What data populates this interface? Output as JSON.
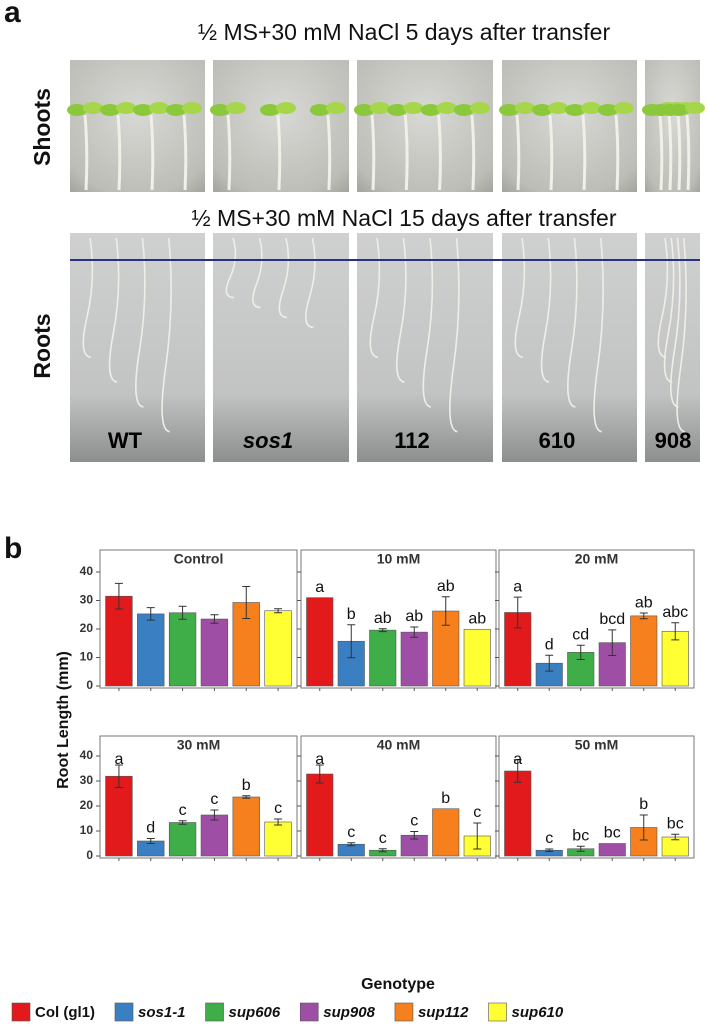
{
  "panel_a": {
    "label": "a",
    "shoots_title": "½ MS+30 mM NaCl 5 days after transfer",
    "roots_title": "½ MS+30 mM NaCl 15 days after transfer",
    "row_labels": [
      "Shoots",
      "Roots"
    ],
    "genotypes": [
      "WT",
      "sos1",
      "112",
      "610",
      "908"
    ]
  },
  "panel_b_label": "b",
  "y_label": "Root Length (mm)",
  "x_label": "Genotype",
  "legend": [
    {
      "name": "Col (gl1)",
      "color": "#e31a1c"
    },
    {
      "name": "sos1-1",
      "color": "#3a7fc1"
    },
    {
      "name": "sup606",
      "color": "#3fae49"
    },
    {
      "name": "sup908",
      "color": "#9e4fa5"
    },
    {
      "name": "sup112",
      "color": "#f7801e"
    },
    {
      "name": "sup610",
      "color": "#ffff33"
    }
  ],
  "chart_data": [
    {
      "type": "bar",
      "title": "Control",
      "values": [
        31.5,
        25.3,
        25.7,
        23.5,
        29.3,
        26.4
      ],
      "errors": [
        4.5,
        2.2,
        2.3,
        1.5,
        5.6,
        0.7
      ],
      "ylim": [
        0,
        40
      ],
      "yticks": [
        0,
        10,
        20,
        30,
        40
      ]
    },
    {
      "type": "bar",
      "title": "10 mM",
      "values": [
        31,
        15.7,
        19.6,
        18.9,
        26.3,
        19.9
      ],
      "errors": [
        null,
        5.8,
        0.5,
        1.8,
        5,
        null
      ],
      "letters": [
        "a",
        "b",
        "ab",
        "ab",
        "ab",
        "ab"
      ],
      "ylim": [
        0,
        40
      ],
      "yticks": [
        0,
        10,
        20,
        30,
        40
      ]
    },
    {
      "type": "bar",
      "title": "20 mM",
      "values": [
        25.8,
        8,
        11.8,
        15.2,
        24.6,
        19.2
      ],
      "errors": [
        5.4,
        2.8,
        2.5,
        4.5,
        1,
        3
      ],
      "letters": [
        "a",
        "d",
        "cd",
        "bcd",
        "ab",
        "abc"
      ],
      "ylim": [
        0,
        40
      ],
      "yticks": [
        0,
        10,
        20,
        30,
        40
      ]
    },
    {
      "type": "bar",
      "title": "30 mM",
      "values": [
        31.9,
        6,
        13.4,
        16.4,
        23.6,
        13.6
      ],
      "errors": [
        4.5,
        1,
        0.7,
        2,
        0.5,
        1.2
      ],
      "letters": [
        "a",
        "d",
        "c",
        "c",
        "b",
        "c"
      ],
      "ylim": [
        0,
        40
      ],
      "yticks": [
        0,
        10,
        20,
        30,
        40
      ]
    },
    {
      "type": "bar",
      "title": "40 mM",
      "values": [
        32.8,
        4.7,
        2.3,
        8.3,
        18.9,
        8
      ],
      "errors": [
        3.6,
        0.6,
        0.6,
        1.5,
        null,
        5.2
      ],
      "letters": [
        "a",
        "c",
        "c",
        "c",
        "b",
        "c"
      ],
      "ylim": [
        0,
        40
      ],
      "yticks": [
        0,
        10,
        20,
        30,
        40
      ]
    },
    {
      "type": "bar",
      "title": "50 mM",
      "values": [
        34,
        2.3,
        2.9,
        5,
        11.4,
        7.6
      ],
      "errors": [
        4.5,
        0.5,
        1,
        null,
        5,
        1.1
      ],
      "letters": [
        "a",
        "c",
        "bc",
        "bc",
        "b",
        "bc"
      ],
      "ylim": [
        0,
        40
      ],
      "yticks": [
        0,
        10,
        20,
        30,
        40
      ]
    }
  ]
}
